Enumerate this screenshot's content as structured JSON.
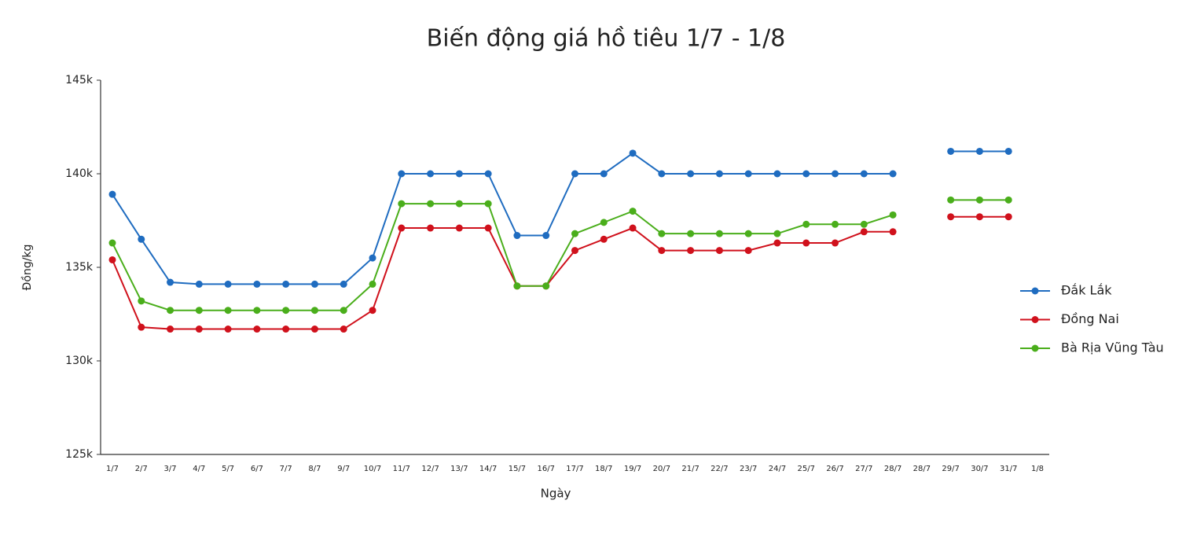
{
  "chart_data": {
    "type": "line",
    "title": "Biến động giá hồ tiêu 1/7 - 1/8",
    "x_label": "Ngày",
    "y_label": "Đồng/kg",
    "categories": [
      "1/7",
      "2/7",
      "3/7",
      "4/7",
      "5/7",
      "6/7",
      "7/7",
      "8/7",
      "9/7",
      "10/7",
      "11/7",
      "12/7",
      "13/7",
      "14/7",
      "15/7",
      "16/7",
      "17/7",
      "18/7",
      "19/7",
      "20/7",
      "21/7",
      "22/7",
      "23/7",
      "24/7",
      "25/7",
      "26/7",
      "27/7",
      "28/7",
      "28/7",
      "29/7",
      "30/7",
      "31/7",
      "1/8"
    ],
    "series": [
      {
        "name": "Đắk Lắk",
        "color": "#1f6cc0",
        "values": [
          138900,
          136500,
          134200,
          134100,
          134100,
          134100,
          134100,
          134100,
          134100,
          135500,
          140000,
          140000,
          140000,
          140000,
          136700,
          136700,
          140000,
          140000,
          141100,
          140000,
          140000,
          140000,
          140000,
          140000,
          140000,
          140000,
          140000,
          140000,
          null,
          141200,
          141200,
          141200,
          null
        ]
      },
      {
        "name": "Đồng Nai",
        "color": "#d0111c",
        "values": [
          135400,
          131800,
          131700,
          131700,
          131700,
          131700,
          131700,
          131700,
          131700,
          132700,
          137100,
          137100,
          137100,
          137100,
          134000,
          134000,
          135900,
          136500,
          137100,
          135900,
          135900,
          135900,
          135900,
          136300,
          136300,
          136300,
          136900,
          136900,
          null,
          137700,
          137700,
          137700,
          null
        ]
      },
      {
        "name": "Bà Rịa Vũng Tàu",
        "color": "#4aae1b",
        "values": [
          136300,
          133200,
          132700,
          132700,
          132700,
          132700,
          132700,
          132700,
          132700,
          134100,
          138400,
          138400,
          138400,
          138400,
          134000,
          134000,
          136800,
          137400,
          138000,
          136800,
          136800,
          136800,
          136800,
          136800,
          137300,
          137300,
          137300,
          137800,
          null,
          138600,
          138600,
          138600,
          null
        ]
      }
    ],
    "ylim": [
      125000,
      145000
    ],
    "yticks": [
      {
        "value": 125000,
        "label": "125k"
      },
      {
        "value": 130000,
        "label": "130k"
      },
      {
        "value": 135000,
        "label": "135k"
      },
      {
        "value": 140000,
        "label": "140k"
      },
      {
        "value": 145000,
        "label": "145k"
      }
    ],
    "grid": false,
    "legend": "right"
  }
}
